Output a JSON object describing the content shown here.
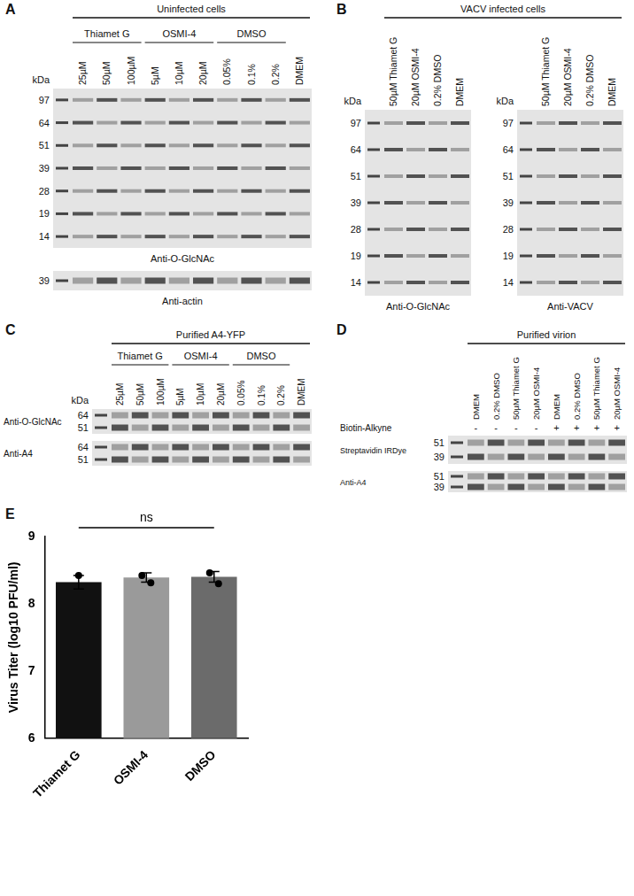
{
  "panels": [
    {
      "letter": "A",
      "title": "Uninfected cells",
      "blots": [
        {
          "kda": "kDa",
          "markers": [
            97,
            64,
            51,
            39,
            28,
            19,
            14
          ],
          "label": "Anti-O-GlcNAc",
          "lane_groups": [
            {
              "label": "Thiamet G",
              "lanes": [
                "25µM",
                "50µM",
                "100µM"
              ]
            },
            {
              "label": "OSMI-4",
              "lanes": [
                "5µM",
                "10µM",
                "20µM"
              ]
            },
            {
              "label": "DMSO",
              "lanes": [
                "0.05%",
                "0.1%",
                "0.2%"
              ]
            },
            {
              "lanes": [
                "DMEM"
              ]
            }
          ]
        },
        {
          "markers": [
            39
          ],
          "label": "Anti-actin"
        }
      ]
    },
    {
      "letter": "B",
      "title": "VACV infected cells",
      "blots": [
        {
          "kda": "kDa",
          "markers": [
            97,
            64,
            51,
            39,
            28,
            19,
            14
          ],
          "label": "Anti-O-GlcNAc",
          "lane_groups": [
            {
              "lanes": [
                "50µM Thiamet G",
                "20µM OSMI-4",
                "0.2% DMSO",
                "DMEM"
              ]
            }
          ]
        },
        {
          "kda": "kDa",
          "markers": [
            97,
            64,
            51,
            39,
            28,
            19,
            14
          ],
          "label": "Anti-VACV",
          "lane_groups": [
            {
              "lanes": [
                "50µM Thiamet G",
                "20µM OSMI-4",
                "0.2% DMSO",
                "DMEM"
              ]
            }
          ]
        }
      ]
    },
    {
      "letter": "C",
      "title": "Purified A4-YFP",
      "blots": [
        {
          "kda": "kDa",
          "markers": [
            64,
            51
          ],
          "label": "Anti-O-GlcNAc",
          "lane_groups": [
            {
              "label": "Thiamet G",
              "lanes": [
                "25µM",
                "50µM",
                "100µM"
              ]
            },
            {
              "label": "OSMI-4",
              "lanes": [
                "5µM",
                "10µM",
                "20µM"
              ]
            },
            {
              "label": "DMSO",
              "lanes": [
                "0.05%",
                "0.1%",
                "0.2%"
              ]
            },
            {
              "lanes": [
                "DMEM"
              ]
            }
          ]
        },
        {
          "markers": [
            64,
            51
          ],
          "label": "Anti-A4"
        }
      ]
    },
    {
      "letter": "D",
      "title": "Purified virion",
      "rows": [
        {
          "label": "Biotin-Alkyne",
          "values": [
            "-",
            "-",
            "-",
            "-",
            "+",
            "+",
            "+",
            "+"
          ]
        }
      ],
      "blots": [
        {
          "markers": [
            51,
            39
          ],
          "label": "Streptavidin IRDye",
          "lane_groups": [
            {
              "lanes": [
                "DMEM",
                "0.2% DMSO",
                "50µM Thiamet G",
                "20µM OSMI-4",
                "DMEM",
                "0.2% DMSO",
                "50µM Thiamet G",
                "20µM OSMI-4"
              ]
            }
          ]
        },
        {
          "markers": [
            51,
            39
          ],
          "label": "Anti-A4"
        }
      ]
    }
  ],
  "chart_data": {
    "letter": "E",
    "type": "bar",
    "categories": [
      "Thiamet G",
      "OSMI-4",
      "DMSO"
    ],
    "values": [
      8.32,
      8.39,
      8.4
    ],
    "errors": [
      0.1,
      0.07,
      0.08
    ],
    "points": [
      [
        8.42
      ],
      [
        8.42,
        8.31
      ],
      [
        8.46,
        8.3
      ]
    ],
    "colors": [
      "#111111",
      "#9a9a9a",
      "#6b6b6b"
    ],
    "y_label": "Virus Titer (log10 PFU/ml)",
    "ylim": [
      6,
      9
    ],
    "yticks": [
      6,
      7,
      8,
      9
    ],
    "annotation": "ns",
    "grid": false
  }
}
